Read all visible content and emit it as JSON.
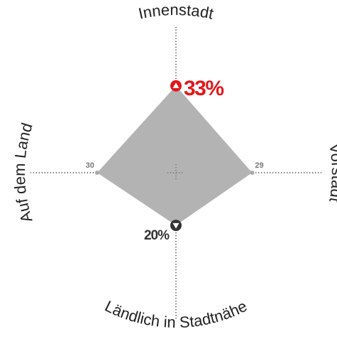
{
  "chart_data": {
    "type": "radar",
    "categories": [
      "Innenstadt",
      "Vorstadt",
      "Ländlich in Stadtnähe",
      "Auf dem Land"
    ],
    "values": [
      33,
      29,
      20,
      30
    ],
    "value_labels": [
      "33%",
      "29",
      "20%",
      "30"
    ],
    "rlim": [
      0,
      54
    ],
    "color": "#b3b3b3",
    "point_colors": [
      "#e3161b",
      "#aaaaaa",
      "#333333",
      "#aaaaaa"
    ]
  }
}
